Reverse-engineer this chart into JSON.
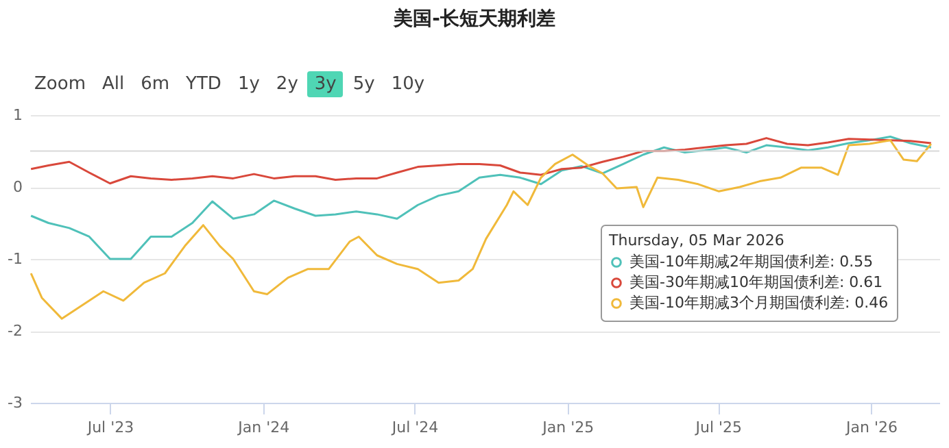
{
  "chart_data": {
    "type": "line",
    "title": "美国-长短天期利差",
    "annotations": [
      "Zoom",
      "All",
      "6m",
      "YTD",
      "1y",
      "2y",
      "3y",
      "5y",
      "10y"
    ],
    "legend_title": "Thursday, 05 Mar 2026",
    "legend": "bottom right",
    "grid": "y",
    "x": [
      "2023-03-28",
      "2023-04-18",
      "2023-05-13",
      "2023-06-06",
      "2023-07-01",
      "2023-07-26",
      "2023-08-19",
      "2023-09-13",
      "2023-10-08",
      "2023-11-01",
      "2023-11-26",
      "2023-12-21",
      "2024-01-14",
      "2024-02-08",
      "2024-03-04",
      "2024-03-28",
      "2024-04-22",
      "2024-05-17",
      "2024-06-10",
      "2024-07-05",
      "2024-07-30",
      "2024-08-23",
      "2024-09-17",
      "2024-10-12",
      "2024-11-05",
      "2024-11-30",
      "2024-12-25",
      "2025-01-18",
      "2025-02-12",
      "2025-03-09",
      "2025-04-02",
      "2025-04-27",
      "2025-05-22",
      "2025-06-15",
      "2025-07-10",
      "2025-08-04",
      "2025-08-28",
      "2025-09-22",
      "2025-10-17",
      "2025-11-10",
      "2025-12-05",
      "2025-12-30",
      "2026-01-24",
      "2026-02-17",
      "2026-03-14"
    ],
    "series": [
      {
        "name": "美国-10年期减2年期国债利差: 0.55",
        "color": "#4fc1b9",
        "values": [
          -0.4,
          -0.5,
          -0.57,
          -0.69,
          -1.0,
          -1.0,
          -0.69,
          -0.69,
          -0.5,
          -0.2,
          -0.44,
          -0.38,
          -0.19,
          -0.3,
          -0.4,
          -0.38,
          -0.34,
          -0.38,
          -0.44,
          -0.25,
          -0.12,
          -0.06,
          0.13,
          0.17,
          0.13,
          0.04,
          0.23,
          0.29,
          0.19,
          0.32,
          0.45,
          0.55,
          0.48,
          0.51,
          0.55,
          0.48,
          0.58,
          0.55,
          0.51,
          0.55,
          0.61,
          0.65,
          0.7,
          0.61,
          0.55
        ]
      },
      {
        "name": "美国-30年期减10年期国债利差: 0.61",
        "color": "#d9483b",
        "values": [
          0.25,
          0.3,
          0.35,
          0.2,
          0.05,
          0.15,
          0.12,
          0.1,
          0.12,
          0.15,
          0.12,
          0.18,
          0.12,
          0.15,
          0.15,
          0.1,
          0.12,
          0.12,
          0.2,
          0.28,
          0.3,
          0.32,
          0.32,
          0.3,
          0.2,
          0.17,
          0.25,
          0.27,
          0.35,
          0.42,
          0.5,
          0.5,
          0.52,
          0.55,
          0.58,
          0.6,
          0.68,
          0.6,
          0.58,
          0.62,
          0.67,
          0.66,
          0.65,
          0.64,
          0.61
        ]
      },
      {
        "name": "美国-10年期减3个月期国债利差: 0.46",
        "color": "#f0b93a",
        "x": [
          "2023-03-28",
          "2023-04-10",
          "2023-05-04",
          "2023-05-29",
          "2023-06-23",
          "2023-07-17",
          "2023-08-11",
          "2023-09-05",
          "2023-09-29",
          "2023-10-21",
          "2023-11-10",
          "2023-11-26",
          "2023-12-21",
          "2024-01-06",
          "2024-01-31",
          "2024-02-24",
          "2024-03-20",
          "2024-04-14",
          "2024-04-25",
          "2024-05-17",
          "2024-06-10",
          "2024-07-05",
          "2024-07-30",
          "2024-08-23",
          "2024-09-09",
          "2024-09-25",
          "2024-10-20",
          "2024-10-28",
          "2024-11-14",
          "2024-11-30",
          "2024-12-17",
          "2025-01-07",
          "2025-01-27",
          "2025-02-12",
          "2025-03-01",
          "2025-03-25",
          "2025-04-02",
          "2025-04-19",
          "2025-05-14",
          "2025-06-07",
          "2025-07-02",
          "2025-07-27",
          "2025-08-20",
          "2025-09-14",
          "2025-10-09",
          "2025-11-02",
          "2025-11-22",
          "2025-12-05",
          "2025-12-30",
          "2026-01-24",
          "2026-02-09",
          "2026-02-25",
          "2026-03-14"
        ],
        "values": [
          -1.2,
          -1.54,
          -1.83,
          -1.64,
          -1.45,
          -1.58,
          -1.33,
          -1.2,
          -0.82,
          -0.53,
          -0.82,
          -1.0,
          -1.45,
          -1.49,
          -1.26,
          -1.14,
          -1.14,
          -0.76,
          -0.69,
          -0.95,
          -1.07,
          -1.14,
          -1.33,
          -1.3,
          -1.14,
          -0.72,
          -0.25,
          -0.06,
          -0.25,
          0.13,
          0.32,
          0.45,
          0.29,
          0.19,
          -0.02,
          0.0,
          -0.28,
          0.13,
          0.1,
          0.04,
          -0.06,
          0.0,
          0.08,
          0.13,
          0.27,
          0.27,
          0.17,
          0.58,
          0.6,
          0.65,
          0.38,
          0.36,
          0.6
        ]
      }
    ],
    "ref_lines": [
      {
        "axis": "y",
        "value": 0.5,
        "color": "#d8d8d8"
      }
    ],
    "xlim": [
      "2023-03-27",
      "2026-03-24"
    ],
    "xticks": [
      {
        "value": "2023-07-01",
        "label": "Jul '23"
      },
      {
        "value": "2024-01-01",
        "label": "Jan '24"
      },
      {
        "value": "2024-07-01",
        "label": "Jul '24"
      },
      {
        "value": "2025-01-01",
        "label": "Jan '25"
      },
      {
        "value": "2025-07-01",
        "label": "Jul '25"
      },
      {
        "value": "2026-01-01",
        "label": "Jan '26"
      }
    ],
    "ylim": [
      -3,
      1
    ],
    "yticks": [
      1,
      0,
      -1,
      -2,
      -3
    ]
  }
}
